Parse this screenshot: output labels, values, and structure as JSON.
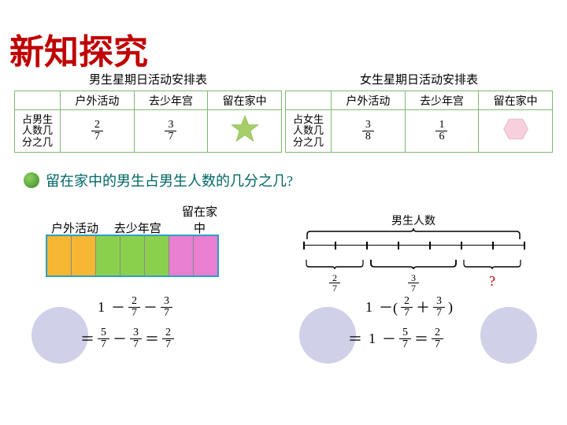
{
  "title": "新知探究",
  "tables": {
    "boys": {
      "caption": "男生星期日活动安排表",
      "headers": [
        "",
        "户外活动",
        "去少年宫",
        "留在家中"
      ],
      "rowLabel": "占男生\n人数几\n分之几",
      "cells": [
        {
          "type": "frac",
          "num": "2",
          "den": "7"
        },
        {
          "type": "frac",
          "num": "3",
          "den": "7"
        },
        {
          "type": "star",
          "fill": "#a6cf6c",
          "stroke": "#8ab84c"
        }
      ]
    },
    "girls": {
      "caption": "女生星期日活动安排表",
      "headers": [
        "",
        "户外活动",
        "去少年宫",
        "留在家中"
      ],
      "rowLabel": "占女生\n人数几\n分之几",
      "cells": [
        {
          "type": "frac",
          "num": "3",
          "den": "8"
        },
        {
          "type": "frac",
          "num": "1",
          "den": "6"
        },
        {
          "type": "hex",
          "fill": "#f6d0dd",
          "stroke": "#e8b0c4"
        }
      ]
    }
  },
  "question": "留在家中的男生占男生人数的几分之几?",
  "barModel": {
    "labels": [
      "户外活动",
      "去少年宫",
      "留在家\n中"
    ],
    "segments": [
      {
        "color": "#f5b731",
        "count": 2
      },
      {
        "color": "#8bd04c",
        "count": 3
      },
      {
        "color": "#e87fd0",
        "count": 2
      }
    ],
    "totalParts": 7
  },
  "lineModel": {
    "overallLabel": "男生人数",
    "parts": [
      {
        "frac": {
          "num": "2",
          "den": "7"
        },
        "width": 2
      },
      {
        "frac": {
          "num": "3",
          "den": "7"
        },
        "width": 3
      },
      {
        "label": "?",
        "width": 2,
        "isQuestion": true
      }
    ],
    "totalParts": 7
  },
  "equations": {
    "left": {
      "line1_parts": [
        "1",
        "－",
        {
          "num": "2",
          "den": "7"
        },
        "－",
        {
          "num": "3",
          "den": "7"
        }
      ],
      "line2_parts": [
        "＝",
        {
          "num": "5",
          "den": "7"
        },
        "－",
        {
          "num": "3",
          "den": "7"
        },
        "＝",
        {
          "num": "2",
          "den": "7"
        }
      ]
    },
    "right": {
      "line1_parts": [
        "1",
        "－(",
        {
          "num": "2",
          "den": "7"
        },
        "＋",
        {
          "num": "3",
          "den": "7"
        },
        ")"
      ],
      "line2_parts": [
        "＝",
        "1",
        "－",
        {
          "num": "5",
          "den": "7"
        },
        "＝",
        {
          "num": "2",
          "den": "7"
        }
      ]
    }
  },
  "colors": {
    "title": "#c00000",
    "tableBorder": "#7fb972",
    "question": "#006666",
    "circle": "#d0d0e8",
    "qmark": "#cc0000"
  }
}
